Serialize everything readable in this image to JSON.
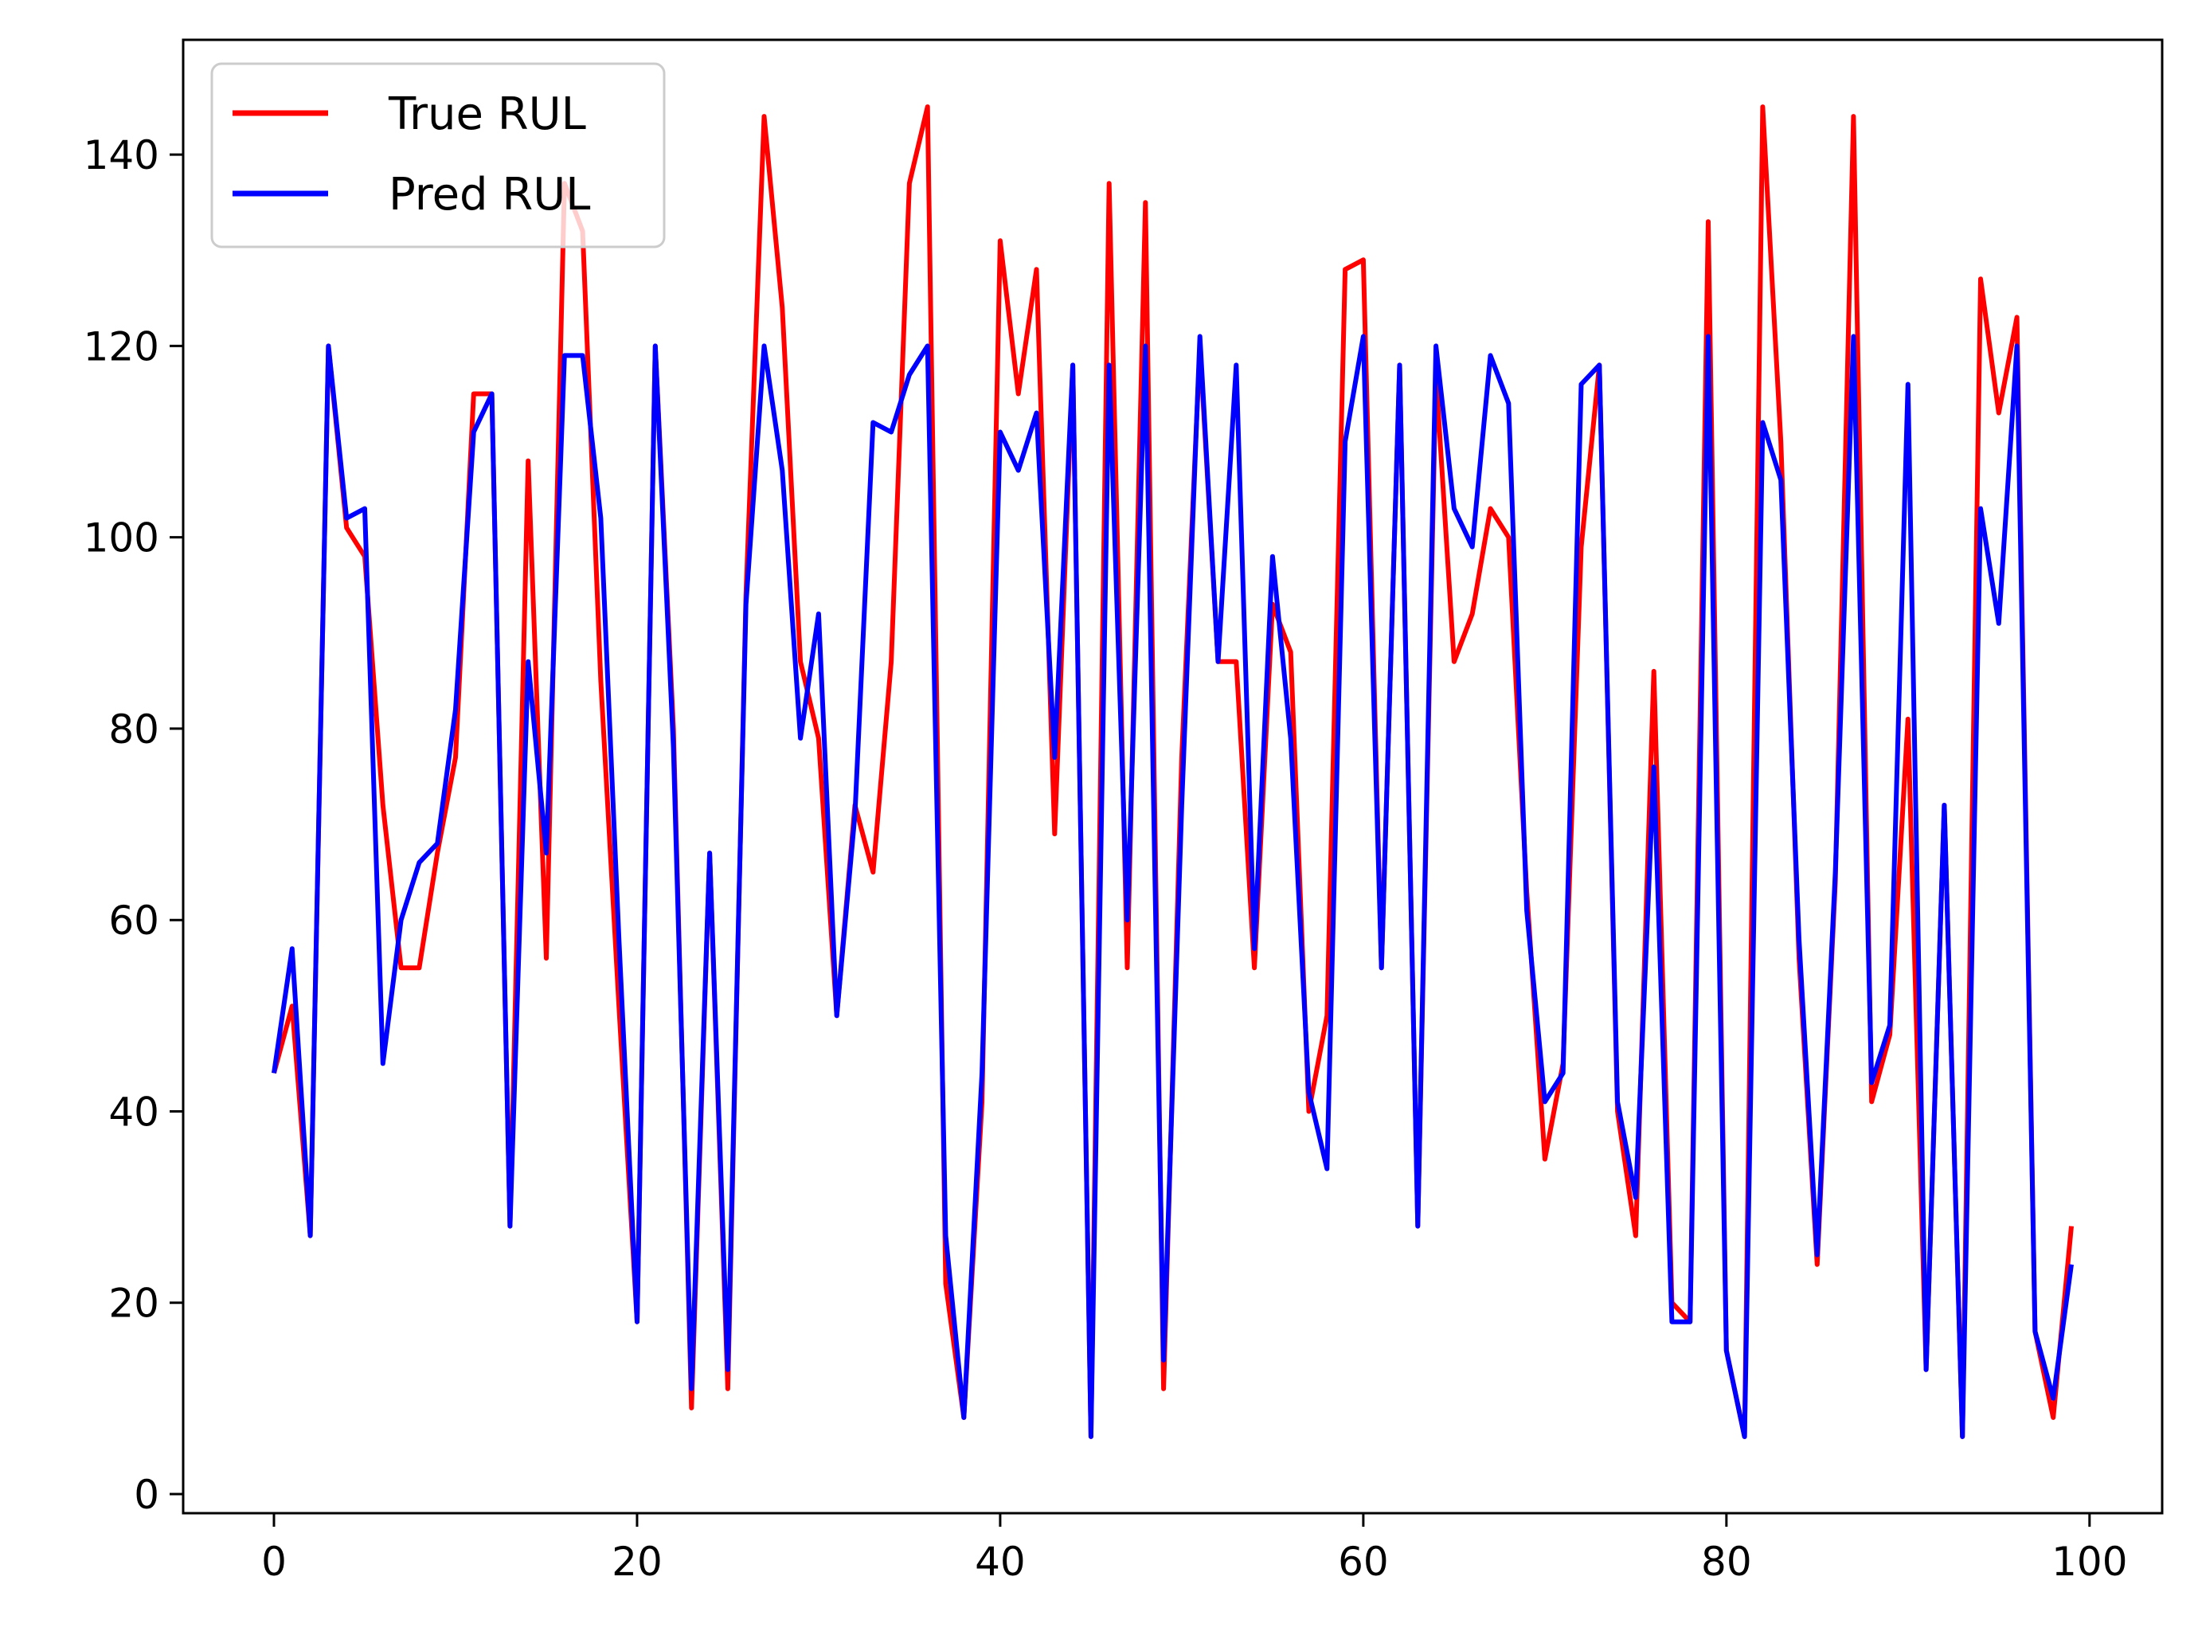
{
  "chart_data": {
    "type": "line",
    "title": "",
    "xlabel": "",
    "ylabel": "",
    "xlim": [
      -5,
      104
    ],
    "ylim": [
      -2,
      152
    ],
    "x_ticks": [
      0,
      20,
      40,
      60,
      80,
      100
    ],
    "y_ticks": [
      0,
      20,
      40,
      60,
      80,
      100,
      120,
      140
    ],
    "grid": false,
    "legend_position": "top-left",
    "x": [
      0,
      1,
      2,
      3,
      4,
      5,
      6,
      7,
      8,
      9,
      10,
      11,
      12,
      13,
      14,
      15,
      16,
      17,
      18,
      19,
      20,
      21,
      22,
      23,
      24,
      25,
      26,
      27,
      28,
      29,
      30,
      31,
      32,
      33,
      34,
      35,
      36,
      37,
      38,
      39,
      40,
      41,
      42,
      43,
      44,
      45,
      46,
      47,
      48,
      49,
      50,
      51,
      52,
      53,
      54,
      55,
      56,
      57,
      58,
      59,
      60,
      61,
      62,
      63,
      64,
      65,
      66,
      67,
      68,
      69,
      70,
      71,
      72,
      73,
      74,
      75,
      76,
      77,
      78,
      79,
      80,
      81,
      82,
      83,
      84,
      85,
      86,
      87,
      88,
      89,
      90,
      91,
      92,
      93,
      94,
      95,
      96,
      97,
      98,
      99
    ],
    "series": [
      {
        "name": "True RUL",
        "color": "#ff0000",
        "values": [
          44,
          51,
          27,
          120,
          101,
          98,
          72,
          55,
          55,
          67,
          77,
          115,
          115,
          28,
          108,
          56,
          137,
          132,
          85,
          51,
          18,
          120,
          80,
          9,
          67,
          11,
          94,
          144,
          124,
          87,
          79,
          50,
          72,
          65,
          87,
          137,
          145,
          22,
          8,
          41,
          131,
          115,
          128,
          69,
          118,
          6,
          137,
          55,
          135,
          11,
          77,
          120,
          87,
          87,
          55,
          93,
          88,
          40,
          50,
          128,
          129,
          55,
          118,
          28,
          117,
          87,
          92,
          103,
          100,
          63,
          35,
          45,
          99,
          118,
          40,
          27,
          86,
          20,
          18,
          133,
          15,
          6,
          145,
          110,
          56,
          24,
          64,
          144,
          41,
          48,
          81,
          13,
          72,
          6,
          127,
          113,
          123,
          17,
          8,
          28
        ]
      },
      {
        "name": "Pred RUL",
        "color": "#0000ff",
        "values": [
          44,
          57,
          27,
          120,
          102,
          103,
          45,
          60,
          66,
          68,
          82,
          111,
          115,
          28,
          87,
          67,
          119,
          119,
          102,
          58,
          18,
          120,
          78,
          11,
          67,
          13,
          93,
          120,
          107,
          79,
          92,
          50,
          71,
          112,
          111,
          117,
          120,
          27,
          8,
          44,
          111,
          107,
          113,
          77,
          118,
          6,
          118,
          60,
          120,
          14,
          72,
          121,
          87,
          118,
          57,
          98,
          79,
          42,
          34,
          110,
          121,
          55,
          118,
          28,
          120,
          103,
          99,
          119,
          114,
          61,
          41,
          44,
          116,
          118,
          41,
          31,
          76,
          18,
          18,
          121,
          15,
          6,
          112,
          106,
          58,
          25,
          65,
          121,
          43,
          49,
          116,
          13,
          72,
          6,
          103,
          91,
          120,
          17,
          10,
          24
        ]
      }
    ]
  }
}
